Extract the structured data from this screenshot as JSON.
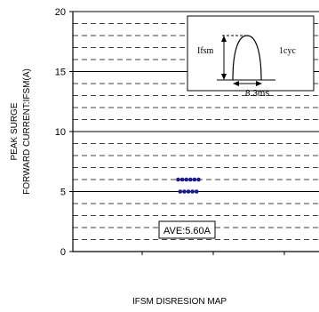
{
  "chart_data": {
    "type": "scatter",
    "title": "",
    "caption": "IFSM DISRESION MAP",
    "ylabel_line1": "PEAK SURGE",
    "ylabel_line2": "FORWARD CURRENT:IFSM(A)",
    "xlabel": "",
    "ylim": [
      0,
      20
    ],
    "y_ticks": [
      0,
      5,
      10,
      15,
      20
    ],
    "y_tick_labels": [
      "0",
      "5",
      "10",
      "15",
      "20"
    ],
    "minor_grid_step": 1,
    "major_grid_step": 5,
    "points": [
      {
        "row": 6.0,
        "count": 6
      },
      {
        "row": 5.0,
        "count": 5
      }
    ],
    "annotation": "AVE:5.60A",
    "inset": {
      "left_label": "Ifsm",
      "right_label": "1cyc",
      "bottom_label": "8.3ms"
    },
    "colors": {
      "points": "#1a1a8c",
      "grid": "#000000"
    }
  }
}
